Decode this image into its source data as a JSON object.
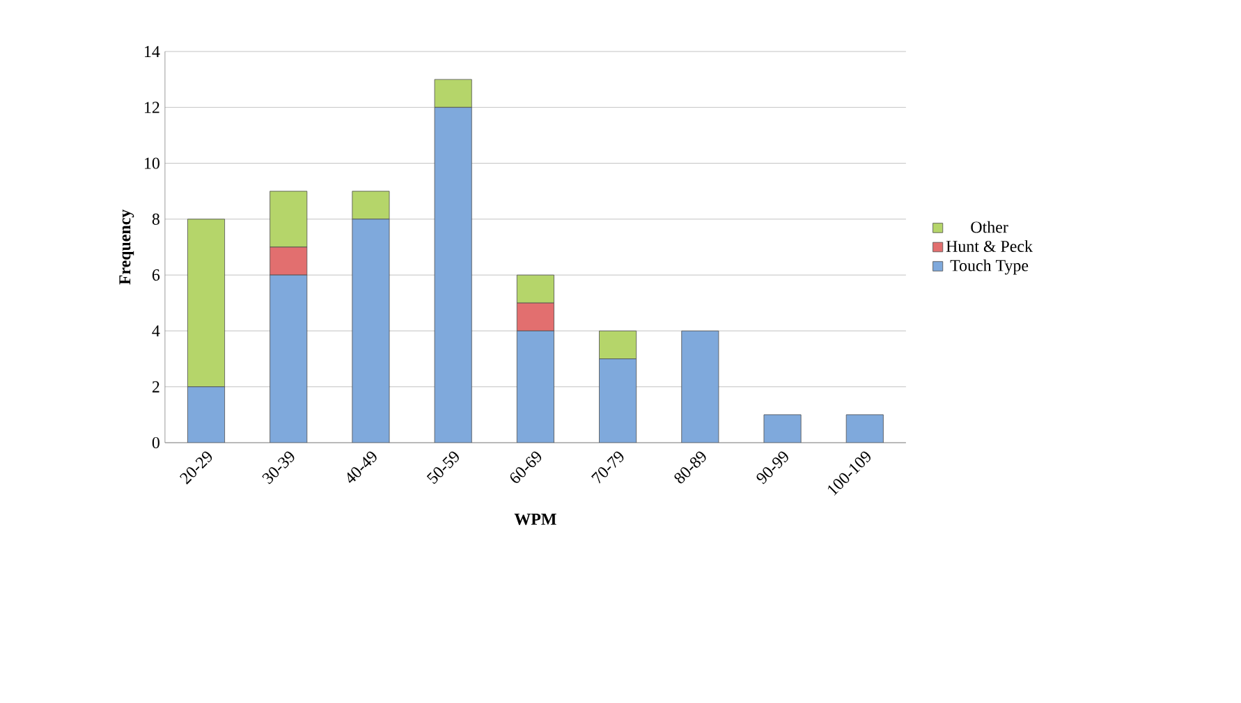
{
  "chart_data": {
    "type": "bar",
    "stacked": true,
    "xlabel": "WPM",
    "ylabel": "Frequency",
    "categories": [
      "20-29",
      "30-39",
      "40-49",
      "50-59",
      "60-69",
      "70-79",
      "80-89",
      "90-99",
      "100-109"
    ],
    "series": [
      {
        "name": "Touch Type",
        "color": "#7fa9dc",
        "values": [
          2,
          6,
          8,
          12,
          4,
          3,
          4,
          1,
          1
        ]
      },
      {
        "name": "Hunt & Peck",
        "color": "#e26f6f",
        "values": [
          0,
          1,
          0,
          0,
          1,
          0,
          0,
          0,
          0
        ]
      },
      {
        "name": "Other",
        "color": "#b5d56a",
        "values": [
          6,
          2,
          1,
          1,
          1,
          1,
          0,
          0,
          0
        ]
      }
    ],
    "ylim": [
      0,
      14
    ],
    "yticks": [
      0,
      2,
      4,
      6,
      8,
      10,
      12,
      14
    ],
    "grid": "y",
    "legend": "right"
  }
}
